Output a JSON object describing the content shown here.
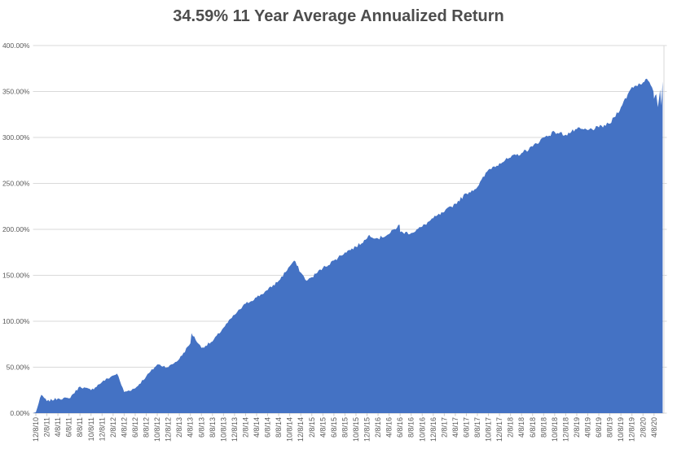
{
  "chart_data": {
    "type": "area",
    "title": "34.59% 11 Year Average Annualized Return",
    "xlabel": "",
    "ylabel": "",
    "ylim": [
      0,
      400
    ],
    "y_tick_step_pct": 50,
    "y_tick_labels": [
      "0.00%",
      "50.00%",
      "100.00%",
      "150.00%",
      "200.00%",
      "250.00%",
      "300.00%",
      "350.00%",
      "400.00%"
    ],
    "grid": true,
    "legend": "none",
    "categories": [
      "12/8/10",
      "2/8/11",
      "4/8/11",
      "6/8/11",
      "8/8/11",
      "10/8/11",
      "12/8/11",
      "2/8/12",
      "4/8/12",
      "6/8/12",
      "8/8/12",
      "10/8/12",
      "12/8/12",
      "2/8/13",
      "4/8/13",
      "6/8/13",
      "8/8/13",
      "10/8/13",
      "12/8/13",
      "2/8/14",
      "4/8/14",
      "6/8/14",
      "8/8/14",
      "10/8/14",
      "12/8/14",
      "2/8/15",
      "4/8/15",
      "6/8/15",
      "8/8/15",
      "10/8/15",
      "12/8/15",
      "2/8/16",
      "4/8/16",
      "6/8/16",
      "8/8/16",
      "10/8/16",
      "12/8/16",
      "2/8/17",
      "4/8/17",
      "6/8/17",
      "8/8/17",
      "10/8/17",
      "12/8/17",
      "2/8/18",
      "4/8/18",
      "6/8/18",
      "8/8/18",
      "10/8/18",
      "12/8/18",
      "2/8/19",
      "4/8/19",
      "6/8/19",
      "8/8/19",
      "10/8/19",
      "12/8/19",
      "2/8/20",
      "4/8/20"
    ],
    "values": [
      1,
      13,
      16,
      16,
      29,
      25,
      34,
      41,
      23,
      27,
      40,
      53,
      50,
      59,
      76,
      71,
      78,
      93,
      107,
      119,
      126,
      134,
      144,
      160,
      153,
      148,
      158,
      166,
      175,
      181,
      190,
      190,
      195,
      197,
      196,
      203,
      212,
      219,
      228,
      239,
      246,
      265,
      272,
      278,
      283,
      290,
      300,
      306,
      303,
      309,
      308,
      311,
      315,
      333,
      355,
      360,
      342
    ],
    "detail_points": [
      [
        0.5,
        20
      ],
      [
        7.35,
        43
      ],
      [
        14.1,
        87
      ],
      [
        23.4,
        166
      ],
      [
        24.55,
        144
      ],
      [
        30.2,
        194
      ],
      [
        32.95,
        205
      ],
      [
        55.35,
        364
      ],
      [
        55.7,
        357
      ],
      [
        55.95,
        350
      ],
      [
        56.2,
        347
      ],
      [
        56.35,
        333
      ],
      [
        56.55,
        352
      ],
      [
        56.65,
        335
      ],
      [
        56.78,
        361
      ]
    ],
    "colors": {
      "area": "#4472c4",
      "gridline": "#d9d9d9",
      "axis_line": "#c9c9c9",
      "axis_text": "#595959",
      "title_text": "#4d4d4d",
      "background": "#ffffff"
    }
  }
}
